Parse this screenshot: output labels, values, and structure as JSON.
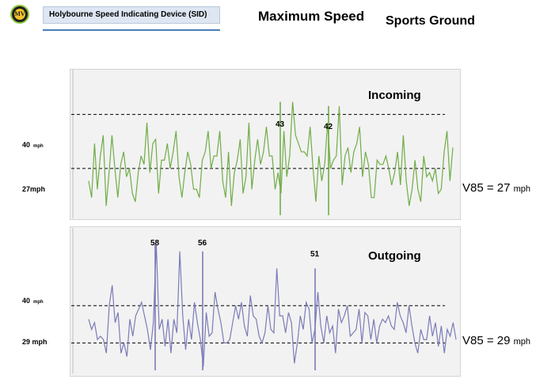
{
  "header": {
    "logo_text": "MV",
    "device_title": "Holybourne Speed Indicating Device  (SID)",
    "main_title": "Maximum Speed",
    "location": "Sports Ground"
  },
  "colors": {
    "incoming": "#70ad47",
    "outgoing": "#7b7bb8",
    "header_fill": "#dde6f2",
    "header_rule": "#4a7ebb"
  },
  "chart_data": [
    {
      "type": "line",
      "panel": "Incoming",
      "title": "Incoming",
      "grid": false,
      "ylim": [
        15,
        50
      ],
      "reference_lines": [
        {
          "y": 40,
          "label_value": "40",
          "label_unit": "mph"
        },
        {
          "y": 27,
          "label_value": "27mph",
          "label_unit": ""
        }
      ],
      "peaks": [
        {
          "label": "43",
          "value": 43
        },
        {
          "label": "42",
          "value": 42
        }
      ],
      "v85": {
        "label": "V85 = 27",
        "unit": "mph",
        "value": 27
      },
      "series": [
        {
          "color": "#70ad47",
          "values": [
            24,
            20,
            33,
            22,
            30,
            35,
            18,
            26,
            35,
            27,
            20,
            28,
            31,
            25,
            27,
            21,
            19,
            26,
            30,
            28,
            38,
            26,
            33,
            34,
            21,
            29,
            29,
            33,
            27,
            31,
            36,
            25,
            20,
            26,
            31,
            28,
            22,
            22,
            20,
            29,
            31,
            36,
            27,
            30,
            30,
            36,
            24,
            20,
            31,
            18,
            26,
            29,
            34,
            21,
            25,
            38,
            22,
            29,
            34,
            28,
            31,
            37,
            30,
            30,
            22,
            26,
            21,
            36,
            25,
            30,
            43,
            35,
            33,
            31,
            31,
            30,
            37,
            27,
            19,
            30,
            24,
            28,
            38,
            27,
            29,
            30,
            42,
            23,
            30,
            32,
            26,
            31,
            33,
            37,
            25,
            31,
            28,
            20,
            20,
            29,
            28,
            28,
            30,
            27,
            23,
            26,
            31,
            23,
            35,
            24,
            18,
            22,
            29,
            22,
            19,
            30,
            25,
            26,
            24,
            27,
            21,
            22,
            31,
            36,
            24,
            32
          ]
        }
      ]
    },
    {
      "type": "line",
      "panel": "Outgoing",
      "title": "Outgoing",
      "grid": false,
      "ylim": [
        20,
        62
      ],
      "reference_lines": [
        {
          "y": 40,
          "label_value": "40",
          "label_unit": "mph"
        },
        {
          "y": 29,
          "label_value": "29 mph",
          "label_unit": ""
        }
      ],
      "peaks": [
        {
          "label": "58",
          "value": 58
        },
        {
          "label": "56",
          "value": 56
        },
        {
          "label": "51",
          "value": 51
        }
      ],
      "v85": {
        "label": "V85 = 29",
        "unit": "mph",
        "value": 29
      },
      "series": [
        {
          "color": "#7b7bb8",
          "values": [
            36,
            33,
            35,
            30,
            31,
            30,
            26,
            40,
            46,
            35,
            38,
            26,
            29,
            25,
            36,
            31,
            37,
            39,
            41,
            37,
            33,
            27,
            35,
            58,
            33,
            36,
            28,
            36,
            26,
            36,
            32,
            56,
            37,
            27,
            36,
            30,
            41,
            35,
            30,
            22,
            38,
            31,
            32,
            44,
            39,
            35,
            29,
            29,
            30,
            35,
            40,
            36,
            41,
            34,
            31,
            43,
            37,
            36,
            31,
            29,
            32,
            40,
            33,
            32,
            51,
            37,
            37,
            32,
            38,
            35,
            23,
            29,
            37,
            33,
            41,
            39,
            29,
            33,
            44,
            34,
            29,
            37,
            32,
            34,
            26,
            39,
            35,
            37,
            40,
            31,
            32,
            33,
            39,
            29,
            38,
            37,
            30,
            36,
            29,
            34,
            36,
            35,
            37,
            34,
            33,
            41,
            37,
            35,
            32,
            40,
            34,
            29,
            26,
            33,
            30,
            30,
            37,
            31,
            35,
            28,
            34,
            26,
            33,
            31,
            35,
            30
          ]
        }
      ]
    }
  ]
}
